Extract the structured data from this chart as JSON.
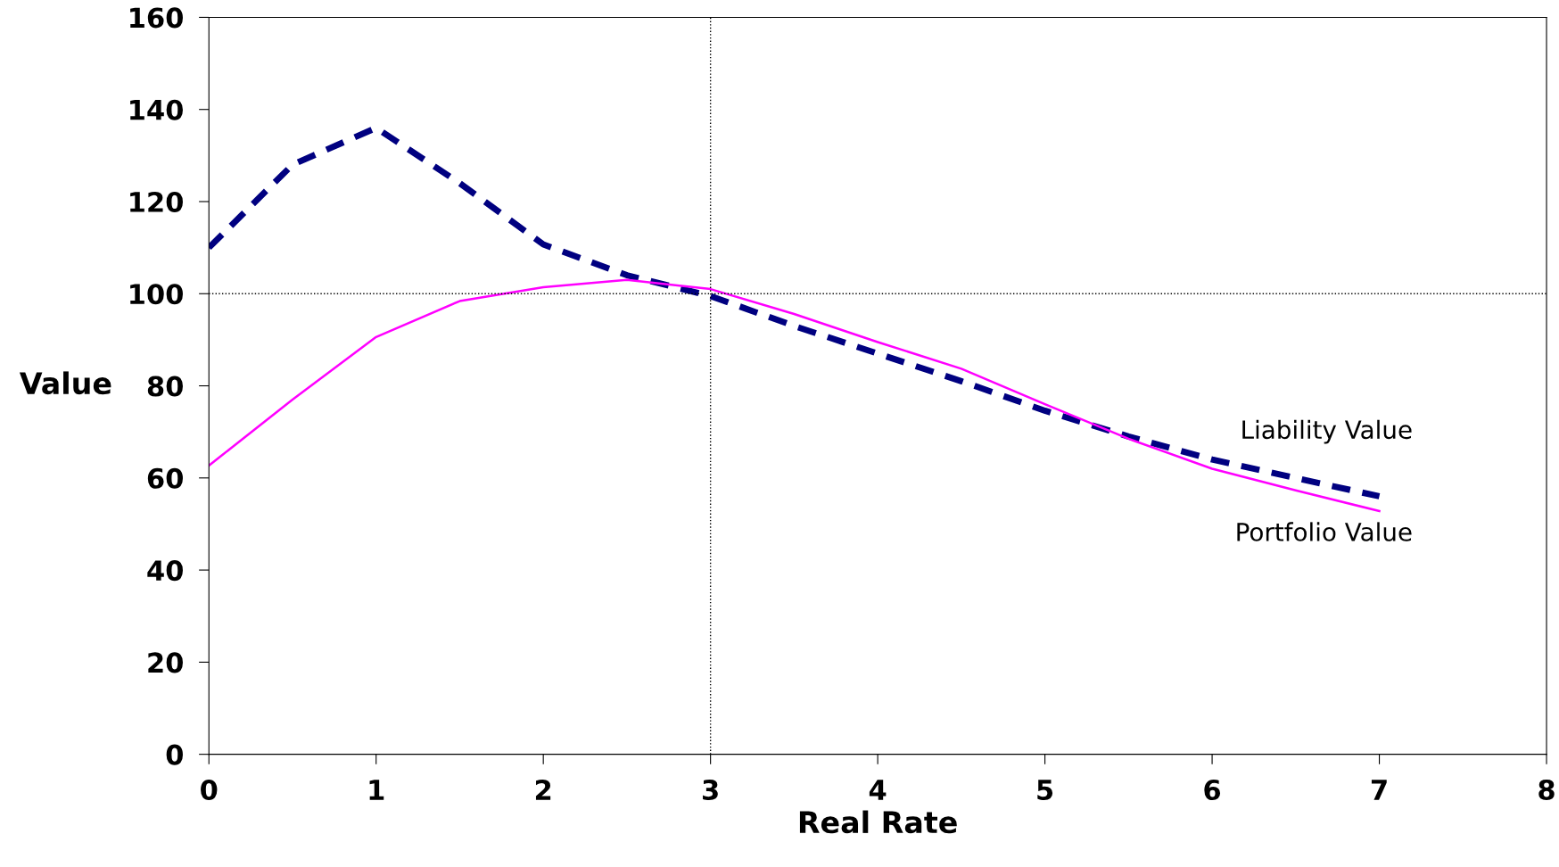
{
  "chart_data": {
    "type": "line",
    "xlabel": "Real Rate",
    "ylabel": "Value",
    "xlim": [
      0,
      8
    ],
    "xticks": [
      0,
      1,
      2,
      3,
      4,
      5,
      6,
      7,
      8
    ],
    "ylim": [
      0,
      160
    ],
    "yticks": [
      0,
      20,
      40,
      60,
      80,
      100,
      120,
      140,
      160
    ],
    "x": [
      0,
      0.5,
      1,
      1.5,
      2,
      2.5,
      3,
      3.5,
      4,
      4.5,
      5,
      5.5,
      6,
      6.5,
      7
    ],
    "series": [
      {
        "name": "Liability Value",
        "color": "#000080",
        "line_style": "dashed",
        "values": [
          110,
          128,
          136,
          124,
          110.7,
          104,
          99.5,
          93,
          87,
          81,
          74.6,
          69,
          64,
          60,
          56
        ]
      },
      {
        "name": "Portfolio Value",
        "color": "#ff00ff",
        "line_style": "solid",
        "values": [
          62.7,
          77,
          90.6,
          98.4,
          101.4,
          103,
          101,
          95.6,
          89.5,
          83.7,
          76,
          68.5,
          62,
          57.3,
          52.8
        ]
      }
    ],
    "ref_lines": [
      {
        "axis": "y",
        "value": 100,
        "line_style": "dotted"
      },
      {
        "axis": "x",
        "value": 3,
        "line_style": "dotted"
      }
    ],
    "grid": false,
    "legend": false,
    "marker": "none"
  }
}
